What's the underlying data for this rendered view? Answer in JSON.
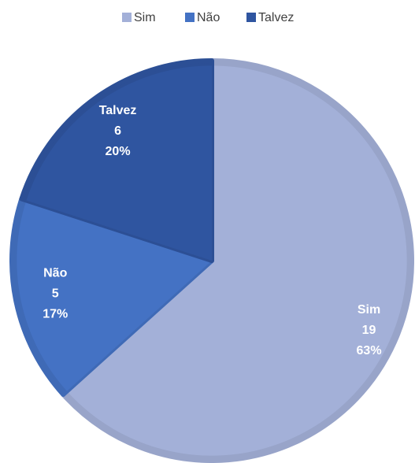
{
  "chart_data": {
    "type": "pie",
    "categories": [
      "Sim",
      "Não",
      "Talvez"
    ],
    "values": [
      19,
      5,
      6
    ],
    "percentages": [
      63,
      17,
      20
    ],
    "percentage_labels": [
      "63%",
      "17%",
      "20%"
    ],
    "colors": [
      "#a3b0d8",
      "#4472c4",
      "#2f55a0"
    ],
    "legend": "top"
  }
}
